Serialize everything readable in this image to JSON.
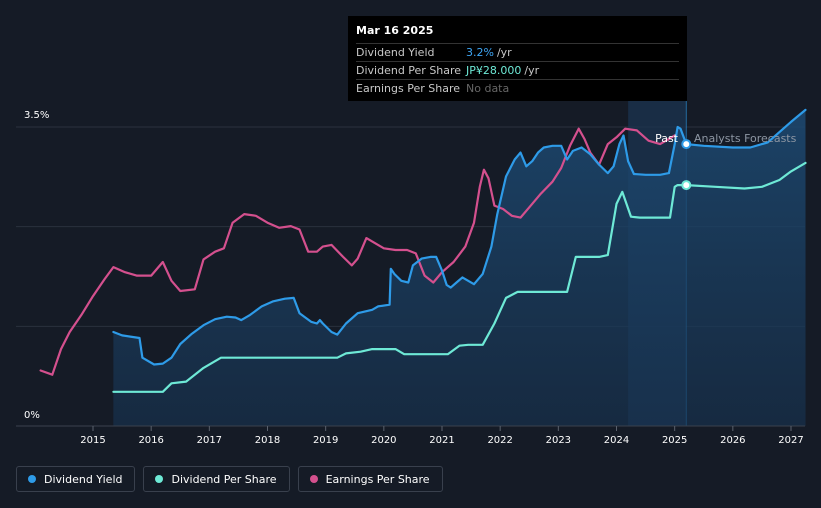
{
  "tooltip": {
    "date": "Mar 16 2025",
    "rows": [
      {
        "label": "Dividend Yield",
        "value": "3.2%",
        "unit": "/yr",
        "color": "#3ea6f5"
      },
      {
        "label": "Dividend Per Share",
        "value": "JP¥28.000",
        "unit": "/yr",
        "color": "#6ee9d6"
      },
      {
        "label": "Earnings Per Share",
        "value": "No data",
        "unit": "",
        "color": "#666666"
      }
    ]
  },
  "regions": {
    "past": "Past",
    "forecast": "Analysts Forecasts"
  },
  "legend": [
    {
      "label": "Dividend Yield",
      "color": "#2e9be8"
    },
    {
      "label": "Dividend Per Share",
      "color": "#6ee9d6"
    },
    {
      "label": "Earnings Per Share",
      "color": "#d4508e"
    }
  ],
  "chart_data": {
    "type": "line",
    "x_ticks": [
      "2015",
      "2016",
      "2017",
      "2018",
      "2019",
      "2020",
      "2021",
      "2022",
      "2023",
      "2024",
      "2025",
      "2026",
      "2027"
    ],
    "y_ticks": [
      {
        "value": 0,
        "label": "0%"
      },
      {
        "value": 3.5,
        "label": "3.5%"
      }
    ],
    "ylim": [
      0,
      3.5
    ],
    "xlim": [
      2014.0,
      2027.25
    ],
    "past_end": 2025.2,
    "highlight_start": 2024.2,
    "grid": true,
    "legend_position": "bottom-left",
    "series": [
      {
        "name": "Dividend Yield",
        "color": "#2e9be8",
        "area": true,
        "points": [
          [
            2015.35,
            1.1
          ],
          [
            2015.5,
            1.06
          ],
          [
            2015.8,
            1.03
          ],
          [
            2015.85,
            0.8
          ],
          [
            2016.05,
            0.72
          ],
          [
            2016.2,
            0.73
          ],
          [
            2016.35,
            0.8
          ],
          [
            2016.5,
            0.96
          ],
          [
            2016.7,
            1.08
          ],
          [
            2016.9,
            1.18
          ],
          [
            2017.1,
            1.25
          ],
          [
            2017.3,
            1.28
          ],
          [
            2017.45,
            1.27
          ],
          [
            2017.55,
            1.24
          ],
          [
            2017.7,
            1.3
          ],
          [
            2017.9,
            1.4
          ],
          [
            2018.1,
            1.46
          ],
          [
            2018.3,
            1.49
          ],
          [
            2018.45,
            1.5
          ],
          [
            2018.55,
            1.32
          ],
          [
            2018.75,
            1.22
          ],
          [
            2018.85,
            1.2
          ],
          [
            2018.9,
            1.24
          ],
          [
            2018.95,
            1.2
          ],
          [
            2019.1,
            1.1
          ],
          [
            2019.2,
            1.07
          ],
          [
            2019.35,
            1.2
          ],
          [
            2019.55,
            1.32
          ],
          [
            2019.8,
            1.36
          ],
          [
            2019.9,
            1.4
          ],
          [
            2020.1,
            1.42
          ],
          [
            2020.12,
            1.84
          ],
          [
            2020.18,
            1.78
          ],
          [
            2020.3,
            1.7
          ],
          [
            2020.42,
            1.68
          ],
          [
            2020.5,
            1.88
          ],
          [
            2020.65,
            1.96
          ],
          [
            2020.8,
            1.98
          ],
          [
            2020.9,
            1.98
          ],
          [
            2021.0,
            1.82
          ],
          [
            2021.08,
            1.65
          ],
          [
            2021.15,
            1.62
          ],
          [
            2021.25,
            1.68
          ],
          [
            2021.35,
            1.74
          ],
          [
            2021.55,
            1.66
          ],
          [
            2021.7,
            1.78
          ],
          [
            2021.85,
            2.1
          ],
          [
            2021.95,
            2.48
          ],
          [
            2022.1,
            2.92
          ],
          [
            2022.25,
            3.12
          ],
          [
            2022.35,
            3.2
          ],
          [
            2022.45,
            3.04
          ],
          [
            2022.55,
            3.1
          ],
          [
            2022.65,
            3.2
          ],
          [
            2022.75,
            3.26
          ],
          [
            2022.9,
            3.28
          ],
          [
            2023.05,
            3.28
          ],
          [
            2023.15,
            3.12
          ],
          [
            2023.25,
            3.22
          ],
          [
            2023.4,
            3.26
          ],
          [
            2023.55,
            3.18
          ],
          [
            2023.7,
            3.06
          ],
          [
            2023.85,
            2.96
          ],
          [
            2023.95,
            3.04
          ],
          [
            2024.05,
            3.3
          ],
          [
            2024.12,
            3.4
          ],
          [
            2024.2,
            3.1
          ],
          [
            2024.3,
            2.95
          ],
          [
            2024.5,
            2.94
          ],
          [
            2024.75,
            2.94
          ],
          [
            2024.9,
            2.96
          ],
          [
            2025.0,
            3.3
          ],
          [
            2025.05,
            3.5
          ],
          [
            2025.1,
            3.48
          ],
          [
            2025.2,
            3.3
          ],
          [
            2025.5,
            3.28
          ],
          [
            2026.0,
            3.26
          ],
          [
            2026.3,
            3.26
          ],
          [
            2026.6,
            3.32
          ],
          [
            2027.0,
            3.56
          ],
          [
            2027.25,
            3.7
          ]
        ]
      },
      {
        "name": "Dividend Per Share",
        "color": "#6ee9d6",
        "area": false,
        "points": [
          [
            2015.35,
            0.4
          ],
          [
            2016.2,
            0.4
          ],
          [
            2016.35,
            0.5
          ],
          [
            2016.6,
            0.52
          ],
          [
            2016.9,
            0.68
          ],
          [
            2017.2,
            0.8
          ],
          [
            2017.5,
            0.8
          ],
          [
            2018.5,
            0.8
          ],
          [
            2019.2,
            0.8
          ],
          [
            2019.35,
            0.85
          ],
          [
            2019.6,
            0.87
          ],
          [
            2019.8,
            0.9
          ],
          [
            2020.2,
            0.9
          ],
          [
            2020.35,
            0.84
          ],
          [
            2020.6,
            0.84
          ],
          [
            2020.9,
            0.84
          ],
          [
            2021.1,
            0.84
          ],
          [
            2021.3,
            0.94
          ],
          [
            2021.45,
            0.95
          ],
          [
            2021.7,
            0.95
          ],
          [
            2021.9,
            1.2
          ],
          [
            2022.1,
            1.5
          ],
          [
            2022.3,
            1.57
          ],
          [
            2022.55,
            1.57
          ],
          [
            2022.9,
            1.57
          ],
          [
            2023.15,
            1.57
          ],
          [
            2023.3,
            1.98
          ],
          [
            2023.45,
            1.98
          ],
          [
            2023.7,
            1.98
          ],
          [
            2023.85,
            2.0
          ],
          [
            2024.0,
            2.6
          ],
          [
            2024.1,
            2.74
          ],
          [
            2024.25,
            2.45
          ],
          [
            2024.4,
            2.44
          ],
          [
            2024.8,
            2.44
          ],
          [
            2024.92,
            2.44
          ],
          [
            2025.0,
            2.8
          ],
          [
            2025.05,
            2.82
          ],
          [
            2025.2,
            2.82
          ],
          [
            2025.7,
            2.8
          ],
          [
            2026.2,
            2.78
          ],
          [
            2026.5,
            2.8
          ],
          [
            2026.8,
            2.88
          ],
          [
            2027.0,
            2.98
          ],
          [
            2027.25,
            3.08
          ]
        ]
      },
      {
        "name": "Earnings Per Share",
        "color": "#d4508e",
        "area": false,
        "points": [
          [
            2014.1,
            0.65
          ],
          [
            2014.3,
            0.6
          ],
          [
            2014.45,
            0.9
          ],
          [
            2014.6,
            1.1
          ],
          [
            2014.8,
            1.3
          ],
          [
            2015.0,
            1.52
          ],
          [
            2015.2,
            1.72
          ],
          [
            2015.35,
            1.86
          ],
          [
            2015.55,
            1.8
          ],
          [
            2015.75,
            1.76
          ],
          [
            2016.0,
            1.76
          ],
          [
            2016.2,
            1.92
          ],
          [
            2016.35,
            1.7
          ],
          [
            2016.5,
            1.58
          ],
          [
            2016.75,
            1.6
          ],
          [
            2016.9,
            1.95
          ],
          [
            2017.1,
            2.04
          ],
          [
            2017.25,
            2.08
          ],
          [
            2017.4,
            2.38
          ],
          [
            2017.6,
            2.48
          ],
          [
            2017.8,
            2.46
          ],
          [
            2018.0,
            2.38
          ],
          [
            2018.2,
            2.32
          ],
          [
            2018.4,
            2.34
          ],
          [
            2018.55,
            2.3
          ],
          [
            2018.7,
            2.04
          ],
          [
            2018.85,
            2.04
          ],
          [
            2018.95,
            2.1
          ],
          [
            2019.1,
            2.12
          ],
          [
            2019.3,
            1.98
          ],
          [
            2019.45,
            1.88
          ],
          [
            2019.55,
            1.96
          ],
          [
            2019.7,
            2.2
          ],
          [
            2019.85,
            2.14
          ],
          [
            2020.0,
            2.08
          ],
          [
            2020.2,
            2.06
          ],
          [
            2020.4,
            2.06
          ],
          [
            2020.55,
            2.02
          ],
          [
            2020.7,
            1.76
          ],
          [
            2020.85,
            1.68
          ],
          [
            2021.0,
            1.8
          ],
          [
            2021.2,
            1.92
          ],
          [
            2021.4,
            2.1
          ],
          [
            2021.55,
            2.38
          ],
          [
            2021.65,
            2.8
          ],
          [
            2021.72,
            3.0
          ],
          [
            2021.8,
            2.9
          ],
          [
            2021.9,
            2.58
          ],
          [
            2022.05,
            2.54
          ],
          [
            2022.2,
            2.46
          ],
          [
            2022.35,
            2.44
          ],
          [
            2022.5,
            2.56
          ],
          [
            2022.7,
            2.72
          ],
          [
            2022.9,
            2.86
          ],
          [
            2023.05,
            3.02
          ],
          [
            2023.2,
            3.28
          ],
          [
            2023.35,
            3.48
          ],
          [
            2023.45,
            3.36
          ],
          [
            2023.55,
            3.2
          ],
          [
            2023.7,
            3.06
          ],
          [
            2023.85,
            3.3
          ],
          [
            2024.0,
            3.38
          ],
          [
            2024.15,
            3.48
          ],
          [
            2024.35,
            3.46
          ],
          [
            2024.55,
            3.34
          ],
          [
            2024.75,
            3.3
          ],
          [
            2024.9,
            3.36
          ],
          [
            2025.0,
            3.4
          ]
        ]
      }
    ],
    "markers": [
      {
        "series": "Dividend Yield",
        "x": 2025.2,
        "y": 3.3
      },
      {
        "series": "Dividend Per Share",
        "x": 2025.2,
        "y": 2.82
      }
    ]
  }
}
